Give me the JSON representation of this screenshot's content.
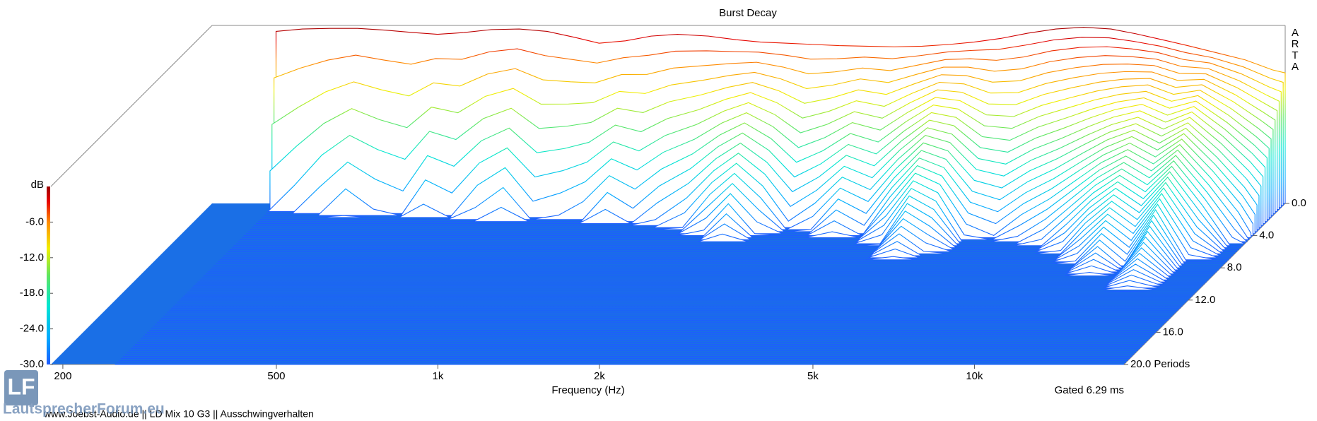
{
  "chart_data": {
    "type": "waterfall",
    "title": "Burst Decay",
    "x_label": "Frequency (Hz)",
    "z_label": "dB",
    "gated": "Gated 6.29 ms",
    "brand": "ARTA",
    "x_log": true,
    "colormap": "jet",
    "xlim": [
      190,
      19000
    ],
    "xticks": [
      200,
      500,
      {
        "value": 1000,
        "label": "1k"
      },
      {
        "value": 2000,
        "label": "2k"
      },
      {
        "value": 5000,
        "label": "5k"
      },
      {
        "value": 10000,
        "label": "10k"
      }
    ],
    "ylim": [
      0,
      20
    ],
    "yticks": [
      {
        "value": 0,
        "label": "0.0"
      },
      {
        "value": 4,
        "label": "4.0"
      },
      {
        "value": 8,
        "label": "8.0"
      },
      {
        "value": 12,
        "label": "12.0"
      },
      {
        "value": 16,
        "label": "16.0"
      },
      {
        "value": 20,
        "label": "20.0 Periods"
      }
    ],
    "zlim": [
      -30,
      0
    ],
    "zticks": [
      {
        "value": -6,
        "label": "-6.0"
      },
      {
        "value": -12,
        "label": "-12.0"
      },
      {
        "value": -18,
        "label": "-18.0"
      },
      {
        "value": -24,
        "label": "-24.0"
      },
      {
        "value": -30,
        "label": "-30.0"
      }
    ],
    "x": [
      250,
      280,
      315,
      355,
      400,
      450,
      500,
      560,
      630,
      710,
      800,
      900,
      1000,
      1120,
      1250,
      1400,
      1600,
      1800,
      2000,
      2240,
      2500,
      2800,
      3150,
      3550,
      4000,
      4500,
      5000,
      5600,
      6300,
      7100,
      8000,
      9000,
      10000,
      11200,
      12500,
      14000,
      16000,
      18000,
      19000
    ],
    "values": [
      -1.0,
      -0.6,
      -0.5,
      -0.5,
      -0.8,
      -1.2,
      -1.5,
      -1.2,
      -0.7,
      -0.6,
      -1.0,
      -2.0,
      -3.0,
      -2.6,
      -1.8,
      -1.5,
      -1.8,
      -2.4,
      -2.8,
      -3.0,
      -3.2,
      -3.4,
      -3.5,
      -3.6,
      -3.5,
      -3.2,
      -2.8,
      -2.2,
      -1.3,
      -0.6,
      -0.3,
      -0.6,
      -1.4,
      -2.4,
      -3.4,
      -4.5,
      -5.8,
      -7.5,
      -8.0
    ],
    "decay_periods": [
      1.0,
      1.2,
      1.5,
      1.8,
      1.6,
      1.5,
      2.0,
      1.8,
      2.2,
      2.5,
      2.0,
      2.2,
      2.5,
      3.0,
      2.6,
      3.0,
      3.5,
      4.5,
      5.5,
      4.5,
      3.5,
      4.0,
      5.0,
      4.5,
      6.0,
      8.0,
      7.0,
      5.0,
      4.5,
      5.0,
      5.5,
      6.5,
      8.0,
      10.0,
      9.0,
      13.0,
      9.0,
      7.0,
      6.0
    ]
  },
  "footer": "www.Joebst-Audio.de || LD Mix 10 G3 || Ausschwingverhalten",
  "watermark": {
    "logo": "LF",
    "text": "LautsprecherForum.eu"
  }
}
